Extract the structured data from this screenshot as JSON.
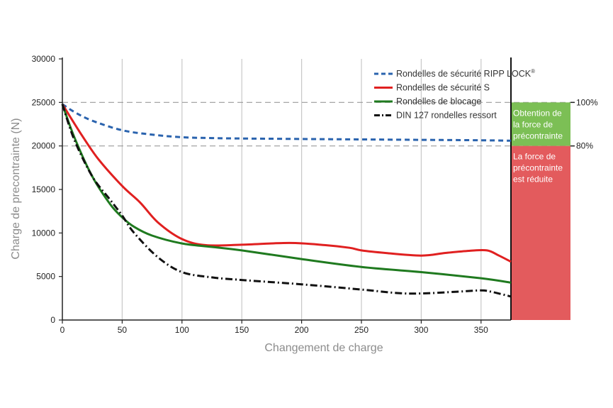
{
  "chart_data": {
    "type": "line",
    "xlabel": "Changement de charge",
    "ylabel": "Charge de precontrainte (N)",
    "xlim": [
      0,
      375
    ],
    "ylim": [
      0,
      30000
    ],
    "x_ticks": [
      0,
      50,
      100,
      150,
      200,
      250,
      300,
      350
    ],
    "y_ticks": [
      0,
      5000,
      10000,
      15000,
      20000,
      25000,
      30000
    ],
    "grid": "vertical",
    "legend_position": "top-right",
    "series": [
      {
        "name": "Rondelles de sécurité RIPP LOCK",
        "name_superscript": "®",
        "color": "#2a63ae",
        "style": "dashed",
        "x": [
          0,
          10,
          25,
          50,
          75,
          100,
          125,
          150,
          200,
          250,
          300,
          350,
          375
        ],
        "y": [
          24800,
          23900,
          22900,
          21800,
          21300,
          21000,
          20900,
          20850,
          20800,
          20750,
          20700,
          20650,
          20600
        ]
      },
      {
        "name": "Rondelles de sécurité S",
        "color": "#e02020",
        "style": "solid",
        "x": [
          0,
          15,
          30,
          50,
          65,
          80,
          100,
          120,
          150,
          190,
          220,
          240,
          250,
          270,
          300,
          320,
          340,
          355,
          365,
          375
        ],
        "y": [
          24800,
          21500,
          18500,
          15400,
          13500,
          11200,
          9300,
          8600,
          8650,
          8850,
          8600,
          8300,
          8000,
          7700,
          7400,
          7700,
          7950,
          8000,
          7400,
          6700
        ]
      },
      {
        "name": "Rondelles de blocage",
        "color": "#1f7a1f",
        "style": "solid",
        "x": [
          0,
          10,
          25,
          40,
          50,
          60,
          75,
          100,
          125,
          150,
          200,
          250,
          300,
          350,
          375
        ],
        "y": [
          24800,
          21000,
          16500,
          13300,
          11800,
          10700,
          9700,
          8800,
          8400,
          8000,
          7000,
          6100,
          5500,
          4800,
          4300
        ]
      },
      {
        "name": "DIN 127 rondelles ressort",
        "color": "#111111",
        "style": "dashdot",
        "x": [
          0,
          10,
          25,
          40,
          50,
          60,
          80,
          100,
          125,
          150,
          200,
          250,
          280,
          300,
          330,
          350,
          360,
          375
        ],
        "y": [
          24800,
          20700,
          16500,
          13800,
          12000,
          10000,
          7200,
          5500,
          4900,
          4600,
          4100,
          3500,
          3100,
          3050,
          3250,
          3400,
          3200,
          2700
        ]
      }
    ],
    "reference_lines": [
      {
        "y": 25000,
        "label": "100%"
      },
      {
        "y": 20000,
        "label": "80%"
      }
    ],
    "zones": [
      {
        "from": 20000,
        "to": 25000,
        "color": "#7cbf55",
        "label_lines": [
          "Obtention de",
          "la force de",
          "précontrainte"
        ]
      },
      {
        "from": 0,
        "to": 20000,
        "color": "#e35b5d",
        "label_lines": [
          "La force de",
          "précontrainte",
          "est réduite"
        ]
      }
    ]
  }
}
